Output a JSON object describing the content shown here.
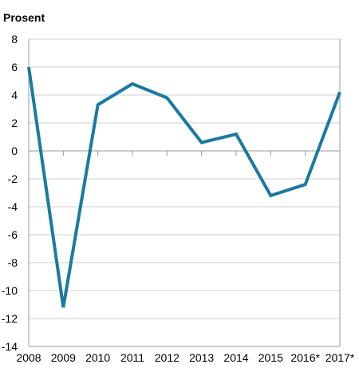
{
  "chart_data": {
    "type": "line",
    "title": "",
    "ylabel": "Prosent",
    "xlabel": "",
    "categories": [
      "2008",
      "2009",
      "2010",
      "2011",
      "2012",
      "2013",
      "2014",
      "2015",
      "2016*",
      "2017*"
    ],
    "series": [
      {
        "values": [
          6.0,
          -11.2,
          3.3,
          4.8,
          3.8,
          0.6,
          1.2,
          -3.2,
          -2.4,
          4.2
        ],
        "color": "#1a7aa0"
      }
    ],
    "ylim": [
      -14,
      8
    ],
    "yticks": [
      8,
      6,
      4,
      2,
      0,
      -2,
      -4,
      -6,
      -8,
      -10,
      -12,
      -14
    ],
    "grid": true,
    "legend": "none"
  }
}
